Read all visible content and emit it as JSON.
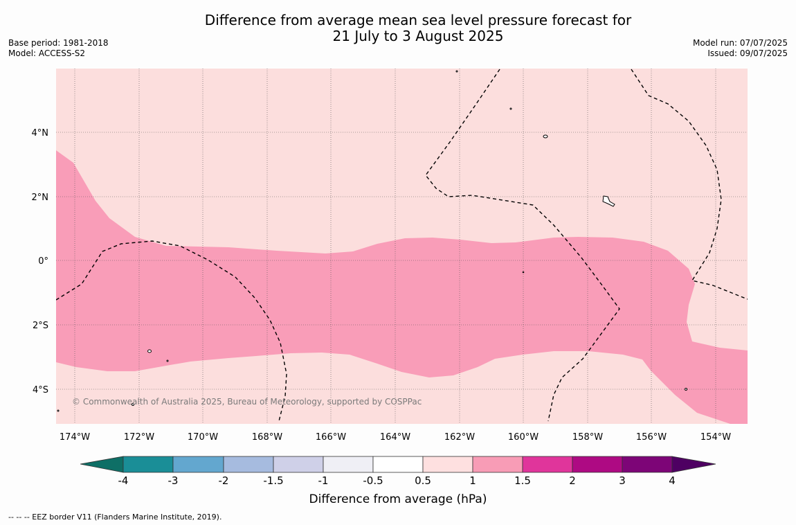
{
  "title_line1": "Difference from average mean sea level pressure forecast for",
  "title_line2": "21 July to 3 August 2025",
  "meta_left": {
    "base_period": "Base period: 1981-2018",
    "model": "Model: ACCESS-S2"
  },
  "meta_right": {
    "model_run": "Model run: 07/07/2025",
    "issued": "Issued: 09/07/2025"
  },
  "copyright": "© Commonwealth of Australia 2025, Bureau of Meteorology, supported by COSPPac",
  "footnote": "--  --  -- EEZ border V11 (Flanders Marine Institute, 2019).",
  "map": {
    "lat_ticks": [
      "4°N",
      "2°N",
      "0°",
      "2°S",
      "4°S"
    ],
    "lon_ticks": [
      "174°W",
      "172°W",
      "170°W",
      "168°W",
      "166°W",
      "164°W",
      "162°W",
      "160°W",
      "158°W",
      "156°W",
      "154°W"
    ],
    "colors": {
      "ocean_bg": "#fcdedd",
      "anomaly_1_to_1_5": "#f99db8",
      "land": "#ffffff",
      "grid": "#555555"
    }
  },
  "colorbar": {
    "label": "Difference from average (hPa)",
    "ticks": [
      "-4",
      "-3",
      "-2",
      "-1.5",
      "-1",
      "-0.5",
      "0.5",
      "1",
      "1.5",
      "2",
      "3",
      "4"
    ],
    "colors": [
      "#0e6f66",
      "#1a8e97",
      "#63a7cf",
      "#a6bbdf",
      "#cfd0e8",
      "#efeff5",
      "#ffffff",
      "#fee0e0",
      "#f89cb6",
      "#e0359b",
      "#ae0a83",
      "#7d0577",
      "#4e0062"
    ]
  }
}
